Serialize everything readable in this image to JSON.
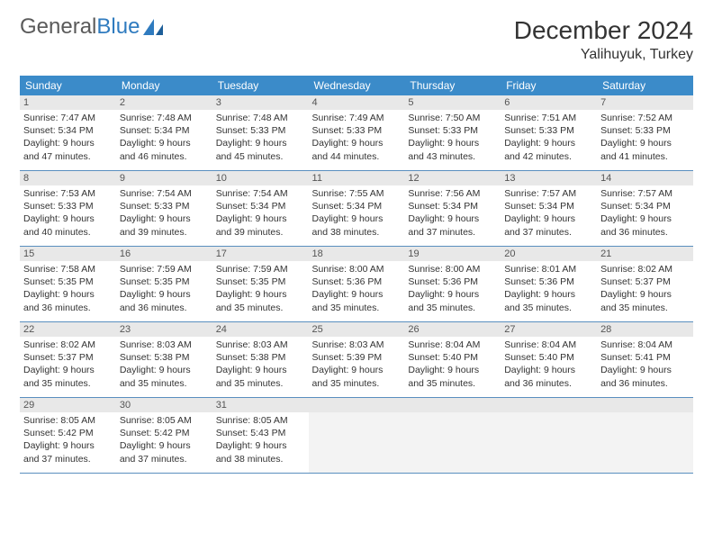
{
  "logo": {
    "text_gray": "General",
    "text_blue": "Blue"
  },
  "title": "December 2024",
  "location": "Yalihuyuk, Turkey",
  "colors": {
    "header_bg": "#3b8bc9",
    "header_text": "#ffffff",
    "daynum_bg": "#e8e8e8",
    "cell_border": "#5a8fbf",
    "logo_blue": "#2f7bbf",
    "logo_gray": "#5a5a5a"
  },
  "weekdays": [
    "Sunday",
    "Monday",
    "Tuesday",
    "Wednesday",
    "Thursday",
    "Friday",
    "Saturday"
  ],
  "weeks": [
    [
      {
        "n": "1",
        "sr": "7:47 AM",
        "ss": "5:34 PM",
        "dl": "9 hours and 47 minutes."
      },
      {
        "n": "2",
        "sr": "7:48 AM",
        "ss": "5:34 PM",
        "dl": "9 hours and 46 minutes."
      },
      {
        "n": "3",
        "sr": "7:48 AM",
        "ss": "5:33 PM",
        "dl": "9 hours and 45 minutes."
      },
      {
        "n": "4",
        "sr": "7:49 AM",
        "ss": "5:33 PM",
        "dl": "9 hours and 44 minutes."
      },
      {
        "n": "5",
        "sr": "7:50 AM",
        "ss": "5:33 PM",
        "dl": "9 hours and 43 minutes."
      },
      {
        "n": "6",
        "sr": "7:51 AM",
        "ss": "5:33 PM",
        "dl": "9 hours and 42 minutes."
      },
      {
        "n": "7",
        "sr": "7:52 AM",
        "ss": "5:33 PM",
        "dl": "9 hours and 41 minutes."
      }
    ],
    [
      {
        "n": "8",
        "sr": "7:53 AM",
        "ss": "5:33 PM",
        "dl": "9 hours and 40 minutes."
      },
      {
        "n": "9",
        "sr": "7:54 AM",
        "ss": "5:33 PM",
        "dl": "9 hours and 39 minutes."
      },
      {
        "n": "10",
        "sr": "7:54 AM",
        "ss": "5:34 PM",
        "dl": "9 hours and 39 minutes."
      },
      {
        "n": "11",
        "sr": "7:55 AM",
        "ss": "5:34 PM",
        "dl": "9 hours and 38 minutes."
      },
      {
        "n": "12",
        "sr": "7:56 AM",
        "ss": "5:34 PM",
        "dl": "9 hours and 37 minutes."
      },
      {
        "n": "13",
        "sr": "7:57 AM",
        "ss": "5:34 PM",
        "dl": "9 hours and 37 minutes."
      },
      {
        "n": "14",
        "sr": "7:57 AM",
        "ss": "5:34 PM",
        "dl": "9 hours and 36 minutes."
      }
    ],
    [
      {
        "n": "15",
        "sr": "7:58 AM",
        "ss": "5:35 PM",
        "dl": "9 hours and 36 minutes."
      },
      {
        "n": "16",
        "sr": "7:59 AM",
        "ss": "5:35 PM",
        "dl": "9 hours and 36 minutes."
      },
      {
        "n": "17",
        "sr": "7:59 AM",
        "ss": "5:35 PM",
        "dl": "9 hours and 35 minutes."
      },
      {
        "n": "18",
        "sr": "8:00 AM",
        "ss": "5:36 PM",
        "dl": "9 hours and 35 minutes."
      },
      {
        "n": "19",
        "sr": "8:00 AM",
        "ss": "5:36 PM",
        "dl": "9 hours and 35 minutes."
      },
      {
        "n": "20",
        "sr": "8:01 AM",
        "ss": "5:36 PM",
        "dl": "9 hours and 35 minutes."
      },
      {
        "n": "21",
        "sr": "8:02 AM",
        "ss": "5:37 PM",
        "dl": "9 hours and 35 minutes."
      }
    ],
    [
      {
        "n": "22",
        "sr": "8:02 AM",
        "ss": "5:37 PM",
        "dl": "9 hours and 35 minutes."
      },
      {
        "n": "23",
        "sr": "8:03 AM",
        "ss": "5:38 PM",
        "dl": "9 hours and 35 minutes."
      },
      {
        "n": "24",
        "sr": "8:03 AM",
        "ss": "5:38 PM",
        "dl": "9 hours and 35 minutes."
      },
      {
        "n": "25",
        "sr": "8:03 AM",
        "ss": "5:39 PM",
        "dl": "9 hours and 35 minutes."
      },
      {
        "n": "26",
        "sr": "8:04 AM",
        "ss": "5:40 PM",
        "dl": "9 hours and 35 minutes."
      },
      {
        "n": "27",
        "sr": "8:04 AM",
        "ss": "5:40 PM",
        "dl": "9 hours and 36 minutes."
      },
      {
        "n": "28",
        "sr": "8:04 AM",
        "ss": "5:41 PM",
        "dl": "9 hours and 36 minutes."
      }
    ],
    [
      {
        "n": "29",
        "sr": "8:05 AM",
        "ss": "5:42 PM",
        "dl": "9 hours and 37 minutes."
      },
      {
        "n": "30",
        "sr": "8:05 AM",
        "ss": "5:42 PM",
        "dl": "9 hours and 37 minutes."
      },
      {
        "n": "31",
        "sr": "8:05 AM",
        "ss": "5:43 PM",
        "dl": "9 hours and 38 minutes."
      },
      null,
      null,
      null,
      null
    ]
  ],
  "labels": {
    "sunrise": "Sunrise:",
    "sunset": "Sunset:",
    "daylight": "Daylight:"
  }
}
